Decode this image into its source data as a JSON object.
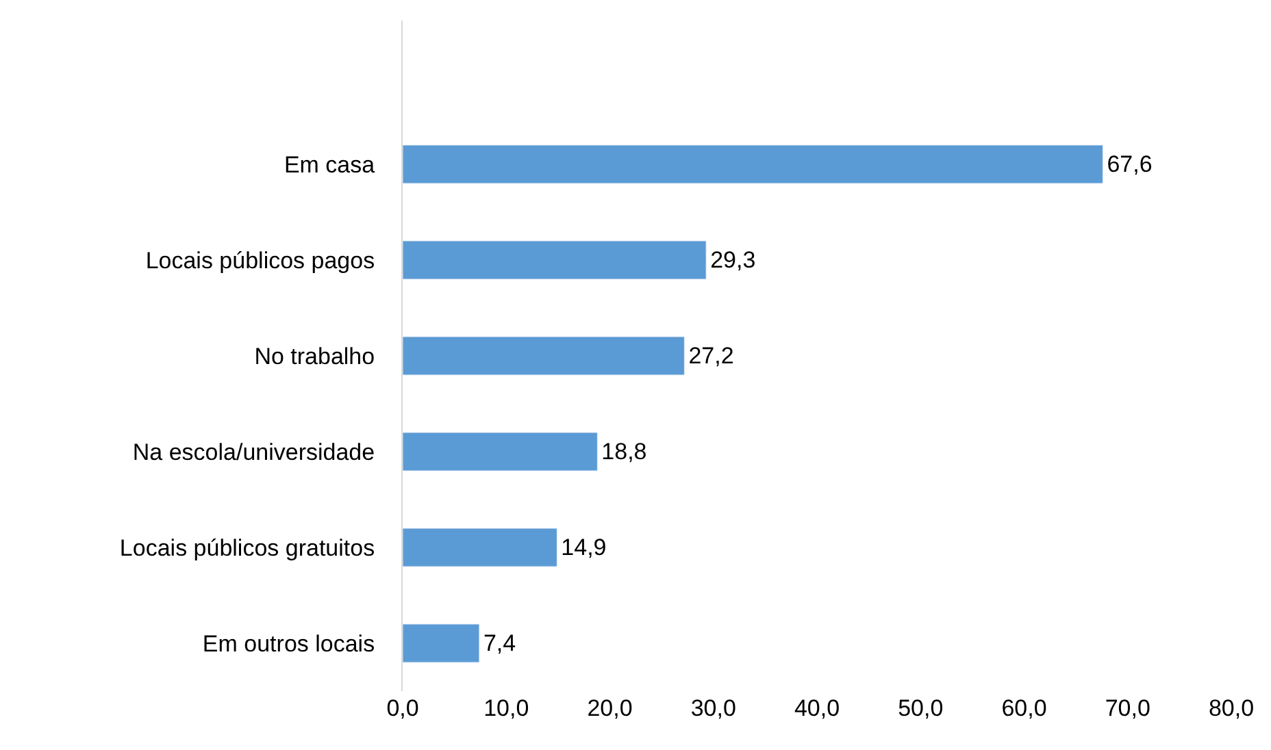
{
  "chart_data": {
    "type": "bar",
    "orientation": "horizontal",
    "categories": [
      "Em casa",
      "Locais públicos pagos",
      "No trabalho",
      "Na escola/universidade",
      "Locais públicos gratuitos",
      "Em outros locais"
    ],
    "values": [
      67.6,
      29.3,
      27.2,
      18.8,
      14.9,
      7.4
    ],
    "value_labels": [
      "67,6",
      "29,3",
      "27,2",
      "18,8",
      "14,9",
      "7,4"
    ],
    "color": "#5b9bd5",
    "xlim": [
      0,
      80
    ],
    "xticks": [
      {
        "value": 0,
        "label": "0,0"
      },
      {
        "value": 10,
        "label": "10,0"
      },
      {
        "value": 20,
        "label": "20,0"
      },
      {
        "value": 30,
        "label": "30,0"
      },
      {
        "value": 40,
        "label": "40,0"
      },
      {
        "value": 50,
        "label": "50,0"
      },
      {
        "value": 60,
        "label": "60,0"
      },
      {
        "value": 70,
        "label": "70,0"
      },
      {
        "value": 80,
        "label": "80,0"
      }
    ]
  }
}
